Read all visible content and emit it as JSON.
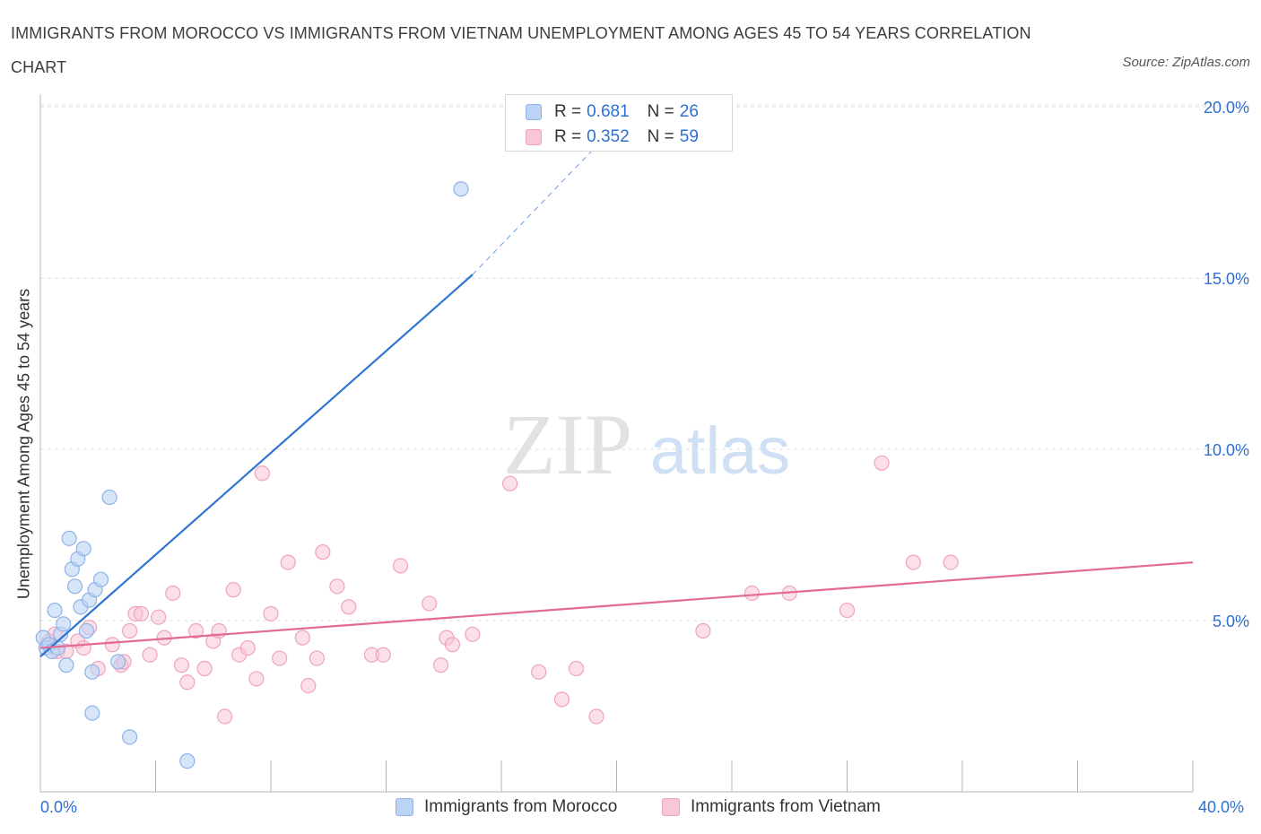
{
  "title": "IMMIGRANTS FROM MOROCCO VS IMMIGRANTS FROM VIETNAM UNEMPLOYMENT AMONG AGES 45 TO 54 YEARS CORRELATION CHART",
  "source": "Source: ZipAtlas.com",
  "watermark": {
    "zip": "ZIP",
    "atlas": "atlas"
  },
  "legend_top": {
    "morocco": {
      "r_label": "R =",
      "r_value": "0.681",
      "n_label": "N =",
      "n_value": "26"
    },
    "vietnam": {
      "r_label": "R =",
      "r_value": "0.352",
      "n_label": "N =",
      "n_value": "59"
    }
  },
  "colors": {
    "morocco_fill": "#bcd3f5",
    "morocco_stroke": "#8fb2e8",
    "morocco_line": "#2f74d0",
    "vietnam_fill": "#f8c6d6",
    "vietnam_stroke": "#efa3bd",
    "vietnam_line": "#e26a96",
    "tick_label": "#2f6fd0",
    "grid": "#dcdcdc"
  },
  "chart_data": {
    "type": "scatter",
    "title": "IMMIGRANTS FROM MOROCCO VS IMMIGRANTS FROM VIETNAM UNEMPLOYMENT AMONG AGES 45 TO 54 YEARS CORRELATION CHART",
    "xlabel": "",
    "ylabel": "Unemployment Among Ages 45 to 54 years",
    "xlim": [
      0,
      40
    ],
    "ylim": [
      0,
      20.5
    ],
    "x_tick_labels": [
      "0.0%",
      "40.0%"
    ],
    "y_ticks": [
      5,
      10,
      15,
      20
    ],
    "y_tick_labels": [
      "5.0%",
      "10.0%",
      "15.0%",
      "20.0%"
    ],
    "grid": true,
    "legend_position": "bottom",
    "series": [
      {
        "name": "Immigrants from Morocco",
        "r": 0.681,
        "n": 26,
        "points": [
          [
            0.1,
            4.5
          ],
          [
            0.2,
            4.2
          ],
          [
            0.3,
            4.3
          ],
          [
            0.4,
            4.1
          ],
          [
            0.5,
            5.3
          ],
          [
            0.6,
            4.2
          ],
          [
            0.7,
            4.6
          ],
          [
            0.8,
            4.9
          ],
          [
            0.9,
            3.7
          ],
          [
            1.0,
            7.4
          ],
          [
            1.1,
            6.5
          ],
          [
            1.2,
            6.0
          ],
          [
            1.3,
            6.8
          ],
          [
            1.4,
            5.4
          ],
          [
            1.5,
            7.1
          ],
          [
            1.6,
            4.7
          ],
          [
            1.7,
            5.6
          ],
          [
            1.8,
            3.5
          ],
          [
            1.9,
            5.9
          ],
          [
            2.1,
            6.2
          ],
          [
            2.4,
            8.6
          ],
          [
            2.7,
            3.8
          ],
          [
            3.1,
            1.6
          ],
          [
            5.1,
            0.9
          ],
          [
            14.6,
            17.6
          ],
          [
            1.8,
            2.3
          ]
        ],
        "trend": {
          "x": [
            0,
            15.0
          ],
          "y": [
            3.95,
            15.1
          ],
          "dashed_to": [
            20.5,
            19.9
          ]
        }
      },
      {
        "name": "Immigrants from Vietnam",
        "r": 0.352,
        "n": 59,
        "points": [
          [
            0.3,
            4.4
          ],
          [
            0.6,
            4.1
          ],
          [
            0.9,
            4.1
          ],
          [
            1.3,
            4.4
          ],
          [
            1.5,
            4.2
          ],
          [
            1.7,
            4.8
          ],
          [
            2.0,
            3.6
          ],
          [
            2.5,
            4.3
          ],
          [
            2.8,
            3.7
          ],
          [
            2.9,
            3.8
          ],
          [
            3.1,
            4.7
          ],
          [
            3.3,
            5.2
          ],
          [
            3.5,
            5.2
          ],
          [
            3.8,
            4.0
          ],
          [
            4.1,
            5.1
          ],
          [
            4.3,
            4.5
          ],
          [
            4.6,
            5.8
          ],
          [
            4.9,
            3.7
          ],
          [
            5.1,
            3.2
          ],
          [
            5.4,
            4.7
          ],
          [
            5.7,
            3.6
          ],
          [
            6.0,
            4.4
          ],
          [
            6.2,
            4.7
          ],
          [
            6.4,
            2.2
          ],
          [
            6.7,
            5.9
          ],
          [
            6.9,
            4.0
          ],
          [
            7.2,
            4.2
          ],
          [
            7.5,
            3.3
          ],
          [
            7.7,
            9.3
          ],
          [
            8.0,
            5.2
          ],
          [
            8.3,
            3.9
          ],
          [
            8.6,
            6.7
          ],
          [
            9.1,
            4.5
          ],
          [
            9.3,
            3.1
          ],
          [
            9.6,
            3.9
          ],
          [
            9.8,
            7.0
          ],
          [
            10.3,
            6.0
          ],
          [
            10.7,
            5.4
          ],
          [
            11.5,
            4.0
          ],
          [
            11.9,
            4.0
          ],
          [
            12.5,
            6.6
          ],
          [
            13.5,
            5.5
          ],
          [
            13.9,
            3.7
          ],
          [
            14.1,
            4.5
          ],
          [
            14.3,
            4.3
          ],
          [
            15.0,
            4.6
          ],
          [
            16.3,
            9.0
          ],
          [
            17.3,
            3.5
          ],
          [
            18.1,
            2.7
          ],
          [
            18.6,
            3.6
          ],
          [
            19.3,
            2.2
          ],
          [
            23.0,
            4.7
          ],
          [
            24.7,
            5.8
          ],
          [
            26.0,
            5.8
          ],
          [
            28.0,
            5.3
          ],
          [
            29.2,
            9.6
          ],
          [
            30.3,
            6.7
          ],
          [
            31.6,
            6.7
          ],
          [
            0.5,
            4.6
          ]
        ],
        "trend": {
          "x": [
            0,
            40
          ],
          "y": [
            4.2,
            6.7
          ]
        }
      }
    ]
  },
  "bottom_legend": {
    "morocco": "Immigrants from Morocco",
    "vietnam": "Immigrants from Vietnam"
  }
}
